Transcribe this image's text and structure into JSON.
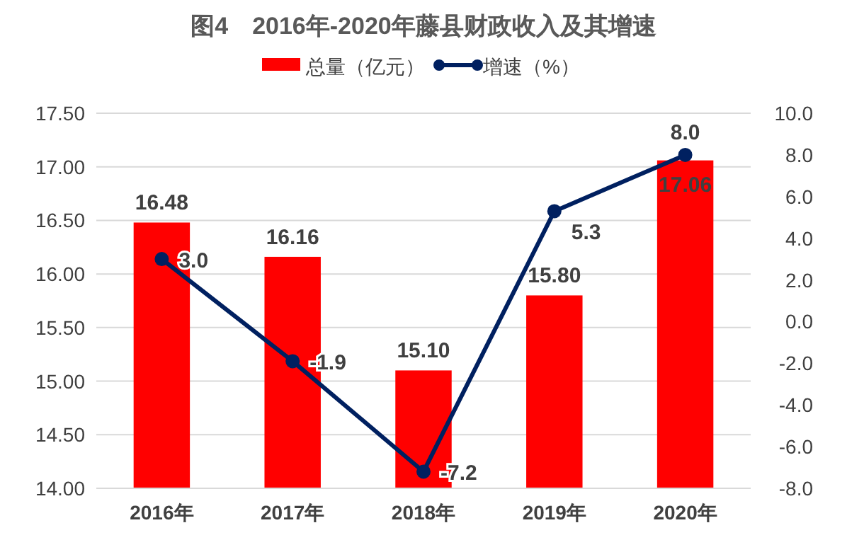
{
  "chart_data": {
    "type": "bar",
    "title": "图4　2016年-2020年藤县财政收入及其增速",
    "categories": [
      "2016年",
      "2017年",
      "2018年",
      "2019年",
      "2020年"
    ],
    "series": [
      {
        "name": "总量（亿元）",
        "color": "#ff0000",
        "values": [
          16.48,
          16.16,
          15.1,
          15.8,
          17.06
        ],
        "value_labels": [
          "16.48",
          "16.16",
          "15.10",
          "15.80",
          "17.06"
        ]
      },
      {
        "name": "增速（%）",
        "color": "#002060",
        "type": "line",
        "axis": "y2",
        "marker": "circle",
        "values": [
          3.0,
          -1.9,
          -7.2,
          5.3,
          8.0
        ],
        "value_labels": [
          "3.0",
          "-1.9",
          "-7.2",
          "5.3",
          "8.0"
        ]
      }
    ],
    "ylim": [
      14.0,
      17.5
    ],
    "yticks": [
      {
        "value": 14.0,
        "label": "14.00"
      },
      {
        "value": 14.5,
        "label": "14.50"
      },
      {
        "value": 15.0,
        "label": "15.00"
      },
      {
        "value": 15.5,
        "label": "15.50"
      },
      {
        "value": 16.0,
        "label": "16.00"
      },
      {
        "value": 16.5,
        "label": "16.50"
      },
      {
        "value": 17.0,
        "label": "17.00"
      },
      {
        "value": 17.5,
        "label": "17.50"
      }
    ],
    "y2lim": [
      -8.0,
      10.0
    ],
    "y2ticks": [
      {
        "value": -8,
        "label": "-8.0"
      },
      {
        "value": -6,
        "label": "-6.0"
      },
      {
        "value": -4,
        "label": "-4.0"
      },
      {
        "value": -2,
        "label": "-2.0"
      },
      {
        "value": 0,
        "label": "0.0"
      },
      {
        "value": 2,
        "label": "2.0"
      },
      {
        "value": 4,
        "label": "4.0"
      },
      {
        "value": 6,
        "label": "6.0"
      },
      {
        "value": 8,
        "label": "8.0"
      },
      {
        "value": 10,
        "label": "10.0"
      }
    ],
    "grid": "y",
    "legend": "top"
  }
}
